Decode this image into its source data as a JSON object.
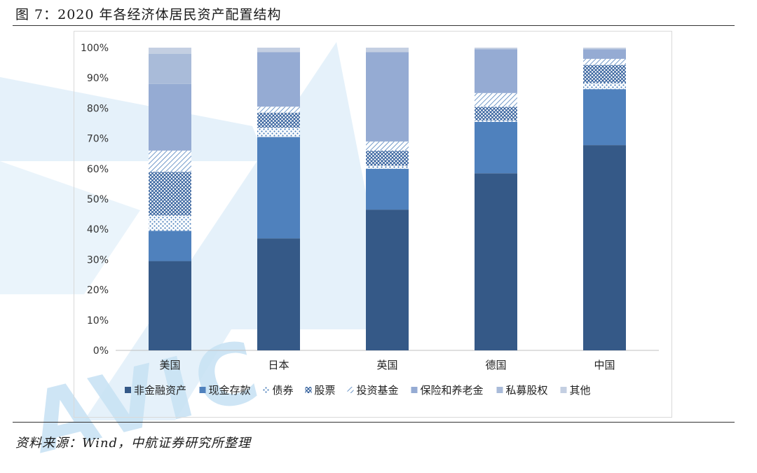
{
  "figure": {
    "title": "图 7：2020 年各经济体居民资产配置结构",
    "source": "资料来源：Wind，中航证券研究所整理",
    "watermark": "AVIC"
  },
  "colors": {
    "非金融资产": "#355987",
    "现金存款": "#4f81bd",
    "债券": "#4f81bd",
    "股票": "#2e5c9a",
    "投资基金": "#4f81bd",
    "保险和养老金": "#95abd3",
    "私募股权": "#a9bbd9",
    "其他": "#c4cfe2"
  },
  "chart_data": {
    "type": "bar",
    "stacked": true,
    "categories": [
      "美国",
      "日本",
      "英国",
      "德国",
      "中国"
    ],
    "series": [
      {
        "name": "非金融资产",
        "values": [
          29.5,
          37,
          46.5,
          58.5,
          67.8
        ]
      },
      {
        "name": "现金存款",
        "values": [
          10,
          33.5,
          13.5,
          17,
          18.5
        ]
      },
      {
        "name": "债券",
        "values": [
          5,
          3,
          1,
          0.5,
          2
        ]
      },
      {
        "name": "股票",
        "values": [
          14.5,
          5,
          5,
          4.5,
          6
        ]
      },
      {
        "name": "投资基金",
        "values": [
          7,
          2,
          3,
          4.5,
          2
        ]
      },
      {
        "name": "保险和养老金",
        "values": [
          22,
          18,
          29.5,
          14.5,
          3.2
        ]
      },
      {
        "name": "私募股权",
        "values": [
          10,
          0,
          0,
          0,
          0
        ]
      },
      {
        "name": "其他",
        "values": [
          2,
          1.5,
          1.5,
          0.5,
          0.5
        ]
      }
    ],
    "y_ticks": [
      "0%",
      "10%",
      "20%",
      "30%",
      "40%",
      "50%",
      "60%",
      "70%",
      "80%",
      "90%",
      "100%"
    ],
    "ylim": [
      0,
      100
    ],
    "grid": false,
    "legend_position": "bottom"
  }
}
